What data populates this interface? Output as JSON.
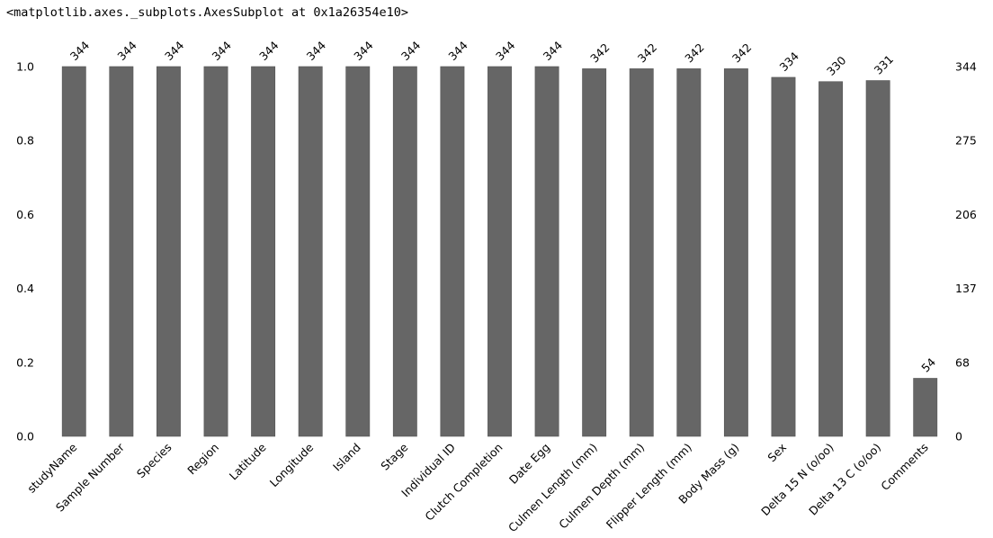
{
  "header": {
    "repr": "<matplotlib.axes._subplots.AxesSubplot at 0x1a26354e10>"
  },
  "chart_data": {
    "type": "bar",
    "categories": [
      "studyName",
      "Sample Number",
      "Species",
      "Region",
      "Latitude",
      "Longitude",
      "Island",
      "Stage",
      "Individual ID",
      "Clutch Completion",
      "Date Egg",
      "Culmen Length (mm)",
      "Culmen Depth (mm)",
      "Flipper Length (mm)",
      "Body Mass (g)",
      "Sex",
      "Delta 15 N (o/oo)",
      "Delta 13 C (o/oo)",
      "Comments"
    ],
    "counts": [
      344,
      344,
      344,
      344,
      344,
      344,
      344,
      344,
      344,
      344,
      344,
      342,
      342,
      342,
      342,
      334,
      330,
      331,
      54
    ],
    "total": 344,
    "ylim": [
      0,
      1
    ],
    "left_ticks": [
      "0.0",
      "0.2",
      "0.4",
      "0.6",
      "0.8",
      "1.0"
    ],
    "right_ticks": [
      "0",
      "68",
      "137",
      "206",
      "275",
      "344"
    ],
    "bar_color": "#666666",
    "title": "",
    "xlabel": "",
    "ylabel": ""
  }
}
